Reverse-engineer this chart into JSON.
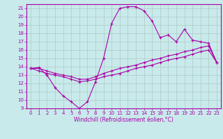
{
  "xlabel": "Windchill (Refroidissement éolien,°C)",
  "bg_color": "#c8eaea",
  "grid_color": "#b0c8c8",
  "line_color": "#aa00aa",
  "spine_color": "#aa00aa",
  "xlim": [
    -0.5,
    23.5
  ],
  "ylim": [
    9,
    21.5
  ],
  "yticks": [
    9,
    10,
    11,
    12,
    13,
    14,
    15,
    16,
    17,
    18,
    19,
    20,
    21
  ],
  "xticks": [
    0,
    1,
    2,
    3,
    4,
    5,
    6,
    7,
    8,
    9,
    10,
    11,
    12,
    13,
    14,
    15,
    16,
    17,
    18,
    19,
    20,
    21,
    22,
    23
  ],
  "line1_x": [
    0,
    1,
    2,
    3,
    4,
    5,
    6,
    7,
    8,
    9,
    10,
    11,
    12,
    13,
    14,
    15,
    16,
    17,
    18,
    19,
    20,
    21,
    22,
    23
  ],
  "line1_y": [
    13.8,
    13.9,
    13.0,
    11.5,
    10.5,
    9.8,
    9.0,
    9.8,
    12.2,
    15.0,
    19.2,
    21.0,
    21.2,
    21.2,
    20.7,
    19.5,
    17.5,
    17.8,
    17.0,
    18.5,
    17.2,
    17.0,
    16.8,
    14.5
  ],
  "line2_x": [
    0,
    1,
    2,
    3,
    4,
    5,
    6,
    7,
    8,
    9,
    10,
    11,
    12,
    13,
    14,
    15,
    16,
    17,
    18,
    19,
    20,
    21,
    22,
    23
  ],
  "line2_y": [
    13.8,
    13.8,
    13.5,
    13.2,
    13.0,
    12.8,
    12.5,
    12.5,
    12.8,
    13.2,
    13.5,
    13.8,
    14.0,
    14.2,
    14.5,
    14.8,
    15.0,
    15.3,
    15.5,
    15.8,
    16.0,
    16.3,
    16.5,
    14.5
  ],
  "line3_x": [
    0,
    1,
    2,
    3,
    4,
    5,
    6,
    7,
    8,
    9,
    10,
    11,
    12,
    13,
    14,
    15,
    16,
    17,
    18,
    19,
    20,
    21,
    22,
    23
  ],
  "line3_y": [
    13.8,
    13.5,
    13.2,
    13.0,
    12.8,
    12.5,
    12.2,
    12.3,
    12.5,
    12.8,
    13.0,
    13.2,
    13.5,
    13.8,
    14.0,
    14.2,
    14.5,
    14.8,
    15.0,
    15.2,
    15.5,
    15.8,
    16.0,
    14.5
  ],
  "tick_fontsize": 5,
  "xlabel_fontsize": 5.5,
  "marker_size": 2.5,
  "line_width": 0.8
}
